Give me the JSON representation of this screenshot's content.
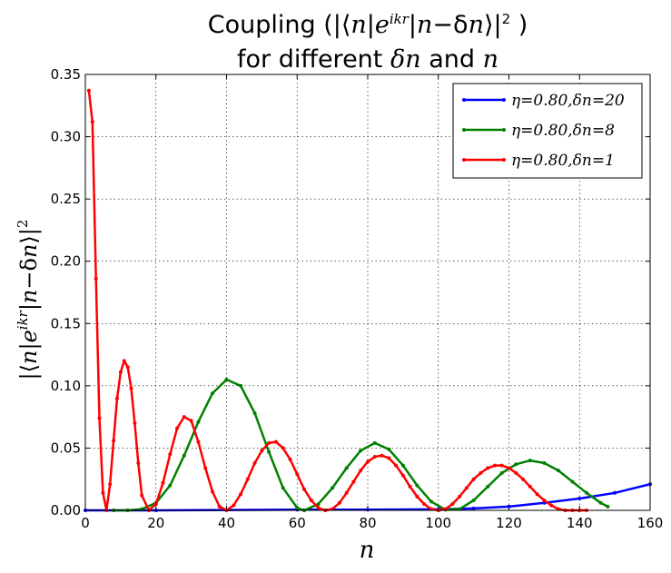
{
  "chart_data": {
    "type": "line",
    "title_line1": "Coupling (|⟨n|e^{ikr}|n−δn⟩|² )",
    "title_line2": "for different δn and n",
    "xlabel": "n",
    "ylabel": "|⟨n|e^{ikr}|n−δn⟩|²",
    "xlim": [
      0,
      160
    ],
    "ylim": [
      0,
      0.35
    ],
    "xticks": [
      "0",
      "20",
      "40",
      "60",
      "80",
      "100",
      "120",
      "140",
      "160"
    ],
    "yticks": [
      "0.00",
      "0.05",
      "0.10",
      "0.15",
      "0.20",
      "0.25",
      "0.30",
      "0.35"
    ],
    "grid": true,
    "legend_position": "top-right",
    "series": [
      {
        "name": "η=0.80,δn=20",
        "color": "#0000ff",
        "x": [
          0,
          20,
          40,
          60,
          80,
          100,
          110,
          120,
          130,
          140,
          150,
          160
        ],
        "y": [
          0.0,
          0.0,
          0.0003,
          0.0005,
          0.0006,
          0.0008,
          0.0015,
          0.003,
          0.006,
          0.0095,
          0.014,
          0.021
        ]
      },
      {
        "name": "η=0.80,δn=8",
        "color": "#008000",
        "x": [
          8,
          12,
          16,
          20,
          24,
          28,
          32,
          36,
          40,
          44,
          48,
          52,
          56,
          60,
          62,
          66,
          70,
          74,
          78,
          82,
          86,
          90,
          94,
          98,
          102,
          106,
          110,
          114,
          118,
          122,
          126,
          130,
          134,
          138,
          142,
          146,
          148
        ],
        "y": [
          0.0,
          0.0,
          0.001,
          0.006,
          0.02,
          0.044,
          0.071,
          0.094,
          0.105,
          0.1,
          0.078,
          0.047,
          0.018,
          0.002,
          0.0,
          0.005,
          0.018,
          0.034,
          0.048,
          0.054,
          0.049,
          0.036,
          0.02,
          0.007,
          0.0005,
          0.001,
          0.008,
          0.019,
          0.03,
          0.037,
          0.04,
          0.038,
          0.032,
          0.023,
          0.014,
          0.006,
          0.003
        ]
      },
      {
        "name": "η=0.80,δn=1",
        "color": "#ff0000",
        "x": [
          1,
          2,
          3,
          4,
          5,
          6,
          7,
          8,
          9,
          10,
          11,
          12,
          13,
          14,
          15,
          16,
          18,
          20,
          22,
          24,
          26,
          28,
          30,
          32,
          34,
          36,
          38,
          40,
          42,
          44,
          46,
          48,
          50,
          52,
          54,
          56,
          58,
          60,
          62,
          64,
          66,
          68,
          70,
          72,
          74,
          76,
          78,
          80,
          82,
          84,
          86,
          88,
          90,
          92,
          94,
          96,
          98,
          100,
          102,
          104,
          106,
          108,
          110,
          112,
          114,
          116,
          118,
          120,
          122,
          124,
          126,
          128,
          130,
          132,
          134,
          136,
          138,
          140,
          142
        ],
        "y": [
          0.337,
          0.312,
          0.186,
          0.074,
          0.014,
          0.0,
          0.021,
          0.056,
          0.09,
          0.111,
          0.12,
          0.115,
          0.098,
          0.07,
          0.038,
          0.012,
          0.0,
          0.005,
          0.022,
          0.045,
          0.066,
          0.075,
          0.072,
          0.055,
          0.034,
          0.015,
          0.003,
          0.0,
          0.004,
          0.013,
          0.025,
          0.038,
          0.048,
          0.054,
          0.055,
          0.05,
          0.041,
          0.029,
          0.017,
          0.008,
          0.002,
          0.0,
          0.001,
          0.006,
          0.014,
          0.023,
          0.032,
          0.039,
          0.043,
          0.044,
          0.042,
          0.036,
          0.028,
          0.019,
          0.011,
          0.005,
          0.001,
          0.0,
          0.001,
          0.005,
          0.011,
          0.018,
          0.025,
          0.03,
          0.034,
          0.036,
          0.036,
          0.034,
          0.03,
          0.025,
          0.019,
          0.013,
          0.008,
          0.004,
          0.001,
          0.0,
          0.0,
          0.0,
          0.0
        ]
      }
    ]
  }
}
